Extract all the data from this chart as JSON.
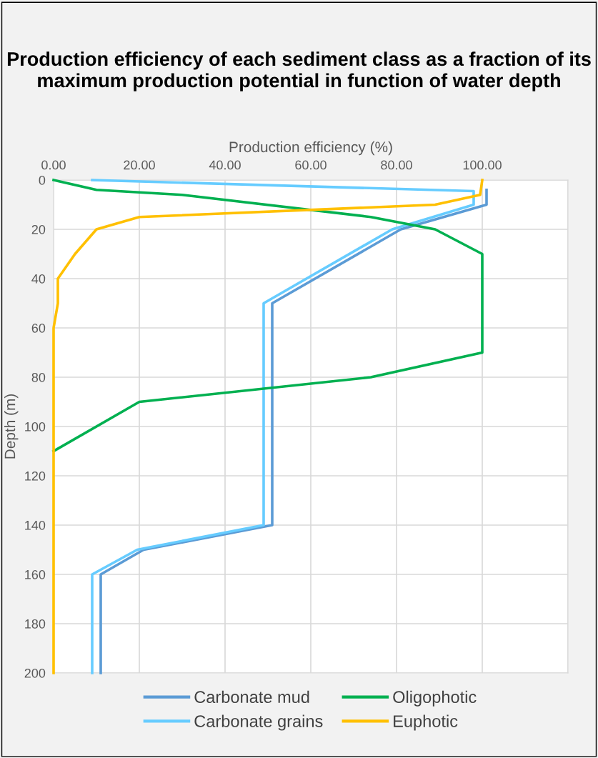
{
  "chart_data": {
    "type": "line",
    "title": "Production efficiency of each sediment class as a fraction of its maximum production potential in function of water depth",
    "xlabel": "Production efficiency (%)",
    "ylabel": "Depth (m)",
    "xlim": [
      0,
      120
    ],
    "xticks": [
      {
        "value": 0,
        "label": "0.00"
      },
      {
        "value": 20,
        "label": "20.00"
      },
      {
        "value": 40,
        "label": "40.00"
      },
      {
        "value": 60,
        "label": "60.00"
      },
      {
        "value": 80,
        "label": "80.00"
      },
      {
        "value": 100,
        "label": "100.00"
      },
      {
        "value": 120,
        "label": null
      }
    ],
    "ylim": [
      200,
      0
    ],
    "yticks": [
      0,
      20,
      40,
      60,
      80,
      100,
      120,
      140,
      160,
      180,
      200
    ],
    "grid": true,
    "legend": "bottom",
    "marker": "none",
    "line_style": "solid",
    "series": [
      {
        "name": "Carbonate mud",
        "color": "#5b9bd5",
        "x": [
          101,
          101,
          81,
          51,
          51,
          21,
          11,
          11
        ],
        "values": [
          4,
          10,
          20,
          50,
          140,
          150,
          160,
          200
        ]
      },
      {
        "name": "Carbonate grains",
        "color": "#66ccff",
        "x": [
          9,
          98,
          98,
          79,
          49,
          49,
          19.5,
          9,
          9
        ],
        "values": [
          0,
          4.5,
          10,
          20,
          50,
          140,
          150,
          160,
          200
        ]
      },
      {
        "name": "Oligophotic",
        "color": "#00b050",
        "x": [
          0,
          10,
          30,
          74,
          89,
          100,
          100,
          74,
          20,
          0
        ],
        "values": [
          0,
          4,
          6,
          15,
          20,
          30,
          70,
          80,
          90,
          110
        ]
      },
      {
        "name": "Euphotic",
        "color": "#ffc000",
        "x": [
          100,
          99.5,
          89,
          20,
          10,
          5,
          1,
          1,
          0,
          0
        ],
        "values": [
          0,
          6,
          10,
          15,
          20,
          30,
          40,
          50,
          60,
          200
        ]
      }
    ]
  }
}
